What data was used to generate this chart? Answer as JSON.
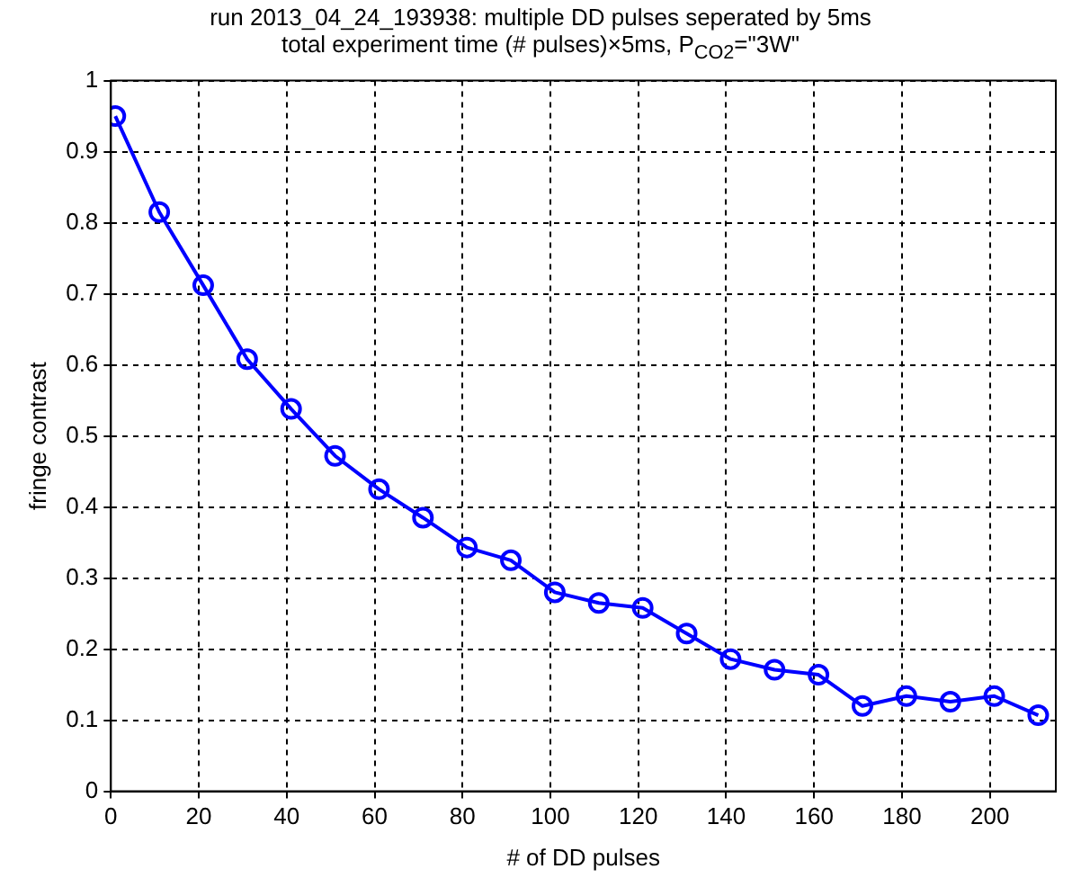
{
  "chart_data": {
    "type": "line",
    "title": "run 2013_04_24_193938: multiple DD pulses seperated by 5ms",
    "subtitle": "total experiment time (# pulses)×5ms, P$_{CO2}$=\"3W\"",
    "xlabel": "# of DD pulses",
    "ylabel": "fringe contrast",
    "x": [
      1,
      11,
      21,
      31,
      41,
      51,
      61,
      71,
      81,
      91,
      101,
      111,
      121,
      131,
      141,
      151,
      161,
      171,
      181,
      191,
      201,
      211
    ],
    "series": [
      {
        "color": "#0000ff",
        "values": [
          0.95,
          0.815,
          0.712,
          0.608,
          0.538,
          0.472,
          0.425,
          0.385,
          0.343,
          0.325,
          0.28,
          0.265,
          0.258,
          0.222,
          0.186,
          0.171,
          0.164,
          0.12,
          0.134,
          0.126,
          0.134,
          0.107
        ]
      }
    ],
    "xlim": [
      0,
      215
    ],
    "xticks": [
      0,
      20,
      40,
      60,
      80,
      100,
      120,
      140,
      160,
      180,
      200
    ],
    "ylim": [
      0,
      1
    ],
    "yticks": [
      0,
      0.1,
      0.2,
      0.3,
      0.4,
      0.5,
      0.6,
      0.7,
      0.8,
      0.9,
      1
    ],
    "grid": true,
    "marker": "circle",
    "line_style": "solid"
  }
}
